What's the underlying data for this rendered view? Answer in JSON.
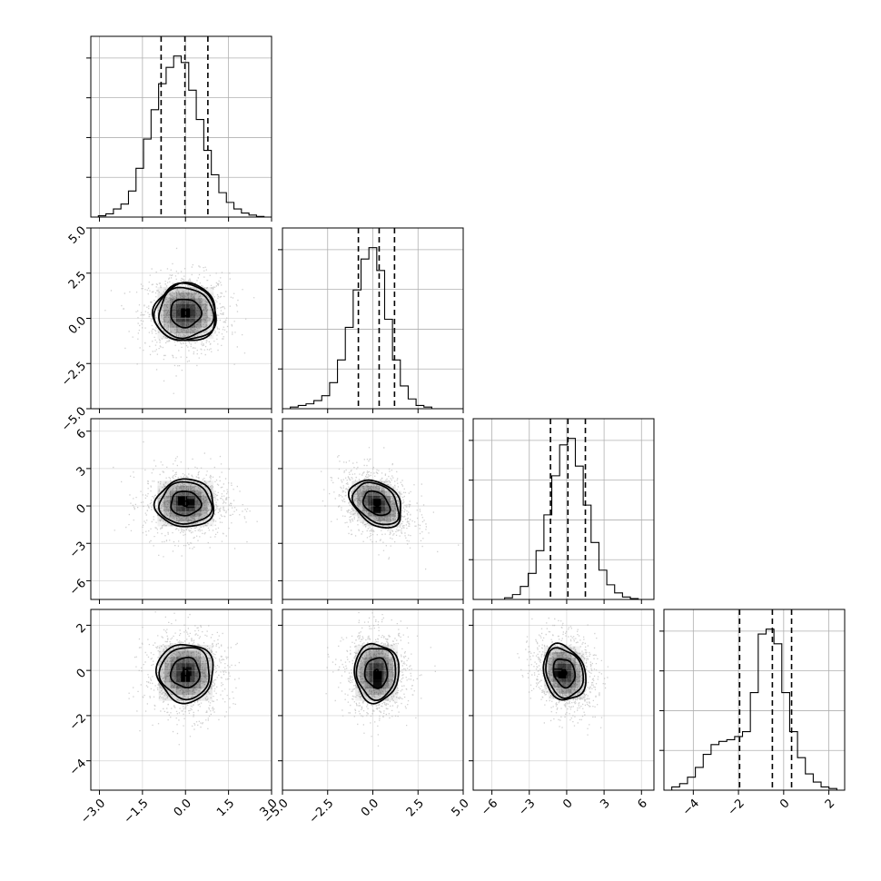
{
  "colors": {
    "line": "#000000",
    "grid": "#b0b0b0",
    "scatter": "#555555",
    "density": "#000000"
  },
  "chart_data": {
    "type": "corner",
    "grid": true,
    "variables": [
      {
        "name": "",
        "range": [
          -3.3,
          3.0
        ],
        "ticks": [
          -3.0,
          -1.5,
          0.0,
          1.5,
          3.0
        ],
        "tick_labels": [
          "−3.0",
          "−1.5",
          "0.0",
          "1.5",
          "3.0"
        ],
        "quantiles": [
          -0.85,
          -0.02,
          0.78
        ],
        "histogram": [
          0,
          0.008,
          0.02,
          0.05,
          0.08,
          0.16,
          0.3,
          0.48,
          0.66,
          0.82,
          0.92,
          0.99,
          0.95,
          0.78,
          0.6,
          0.41,
          0.26,
          0.15,
          0.09,
          0.05,
          0.025,
          0.012,
          0.004,
          0
        ]
      },
      {
        "name": "",
        "range": [
          -5.0,
          5.0
        ],
        "ticks": [
          -5.0,
          -2.5,
          0.0,
          2.5,
          5.0
        ],
        "tick_labels": [
          "−5.0",
          "−2.5",
          "0.0",
          "2.5",
          "5.0"
        ],
        "quantiles": [
          -0.8,
          0.35,
          1.2
        ],
        "histogram": [
          0,
          0.01,
          0.02,
          0.03,
          0.05,
          0.08,
          0.16,
          0.3,
          0.5,
          0.73,
          0.92,
          0.99,
          0.85,
          0.55,
          0.3,
          0.14,
          0.06,
          0.02,
          0.01,
          0,
          0,
          0,
          0
        ]
      },
      {
        "name": "",
        "range": [
          -7.5,
          7.0
        ],
        "ticks": [
          -6,
          -3,
          0,
          3,
          6
        ],
        "tick_labels": [
          "−6",
          "−3",
          "0",
          "3",
          "6"
        ],
        "quantiles": [
          -1.3,
          0.1,
          1.5
        ],
        "histogram": [
          0,
          0,
          0,
          0,
          0.01,
          0.03,
          0.08,
          0.16,
          0.3,
          0.52,
          0.76,
          0.95,
          0.99,
          0.82,
          0.58,
          0.35,
          0.18,
          0.09,
          0.04,
          0.015,
          0.005,
          0,
          0
        ]
      },
      {
        "name": "",
        "range": [
          -5.3,
          2.7
        ],
        "ticks": [
          -4,
          -2,
          0,
          2
        ],
        "tick_labels": [
          "−4",
          "−2",
          "0",
          "2"
        ],
        "quantiles": [
          -1.95,
          -0.5,
          0.35
        ],
        "histogram": [
          0,
          0.02,
          0.04,
          0.08,
          0.14,
          0.22,
          0.28,
          0.3,
          0.31,
          0.33,
          0.36,
          0.6,
          0.96,
          0.99,
          0.9,
          0.6,
          0.36,
          0.2,
          0.1,
          0.05,
          0.02,
          0.01,
          0
        ]
      }
    ],
    "pairs": [
      {
        "row": 1,
        "col": 0,
        "center": [
          0.0,
          0.3
        ],
        "sigma": [
          0.75,
          1.1
        ],
        "corr": 0.0,
        "cells": [
          [
            0.0,
            0.3,
            1.0
          ]
        ],
        "levels": [
          0.12,
          0.65,
          1.25,
          1.55,
          1.75
        ]
      },
      {
        "row": 2,
        "col": 0,
        "center": [
          0.0,
          0.2
        ],
        "sigma": [
          0.75,
          1.4
        ],
        "corr": 0.0,
        "cells": [
          [
            -0.1,
            0.4,
            1.0
          ],
          [
            0.15,
            0.2,
            0.85
          ]
        ],
        "levels": [
          0.12,
          0.65,
          1.25,
          1.6
        ]
      },
      {
        "row": 2,
        "col": 1,
        "center": [
          0.2,
          0.2
        ],
        "sigma": [
          1.05,
          1.4
        ],
        "corr": -0.35,
        "cells": [
          [
            0.2,
            0.2,
            1.0
          ],
          [
            0.2,
            -0.2,
            0.9
          ]
        ],
        "levels": [
          0.12,
          0.65,
          1.25,
          1.6
        ]
      },
      {
        "row": 3,
        "col": 0,
        "center": [
          0.0,
          -0.1
        ],
        "sigma": [
          0.72,
          0.95
        ],
        "corr": 0.0,
        "cells": [
          [
            0.0,
            -0.3,
            1.0
          ],
          [
            0.05,
            -0.05,
            0.8
          ]
        ],
        "levels": [
          0.12,
          0.65,
          1.25,
          1.6
        ]
      },
      {
        "row": 3,
        "col": 1,
        "center": [
          0.2,
          -0.1
        ],
        "sigma": [
          0.9,
          0.95
        ],
        "corr": 0.0,
        "cells": [
          [
            0.25,
            -0.2,
            1.0
          ],
          [
            0.25,
            -0.6,
            0.85
          ]
        ],
        "levels": [
          0.12,
          0.65,
          1.25,
          1.6
        ]
      },
      {
        "row": 3,
        "col": 2,
        "center": [
          -0.2,
          -0.1
        ],
        "sigma": [
          1.25,
          0.9
        ],
        "corr": -0.2,
        "cells": [
          [
            -0.3,
            -0.15,
            1.0
          ],
          [
            -0.7,
            -0.1,
            0.8
          ]
        ],
        "levels": [
          0.12,
          0.65,
          1.25,
          1.6
        ]
      }
    ]
  }
}
